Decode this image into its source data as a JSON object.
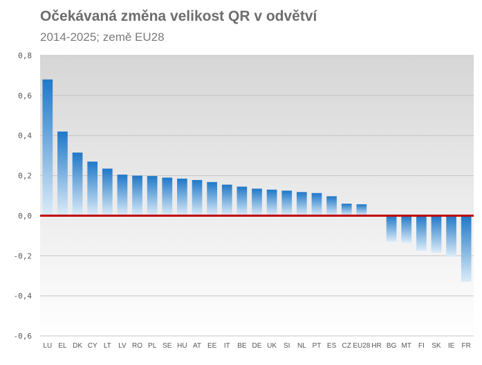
{
  "chart_data": {
    "type": "bar",
    "title": "Očekávaná změna velikost QR v odvětví",
    "subtitle": "2014-2025; země EU28",
    "xlabel": "",
    "ylabel": "",
    "ylim": [
      -0.6,
      0.8
    ],
    "yticks": [
      "0,8",
      "0,6",
      "0,4",
      "0,2",
      "0,0",
      "-0,2",
      "-0,4",
      "-0,6"
    ],
    "ytick_values": [
      0.8,
      0.6,
      0.4,
      0.2,
      0.0,
      -0.2,
      -0.4,
      -0.6
    ],
    "grid": true,
    "legend": "none",
    "categories": [
      "LU",
      "EL",
      "DK",
      "CY",
      "LT",
      "LV",
      "RO",
      "PL",
      "SE",
      "HU",
      "AT",
      "EE",
      "IT",
      "BE",
      "DE",
      "UK",
      "SI",
      "NL",
      "PT",
      "ES",
      "CZ",
      "EU28",
      "HR",
      "BG",
      "MT",
      "FI",
      "SK",
      "IE",
      "FR"
    ],
    "values": [
      0.68,
      0.42,
      0.315,
      0.27,
      0.235,
      0.205,
      0.2,
      0.198,
      0.19,
      0.185,
      0.178,
      0.168,
      0.155,
      0.145,
      0.135,
      0.13,
      0.125,
      0.118,
      0.113,
      0.097,
      0.06,
      0.057,
      0.0,
      -0.13,
      -0.135,
      -0.175,
      -0.185,
      -0.205,
      -0.33
    ],
    "colors": {
      "bar_dark": "#1f78c8",
      "bar_light": "#dcecf8",
      "zero_line": "#c00000",
      "grid": "#c4c4c4",
      "plot_bg_top": "#d6d6d6",
      "plot_bg_bottom": "#ffffff"
    }
  }
}
